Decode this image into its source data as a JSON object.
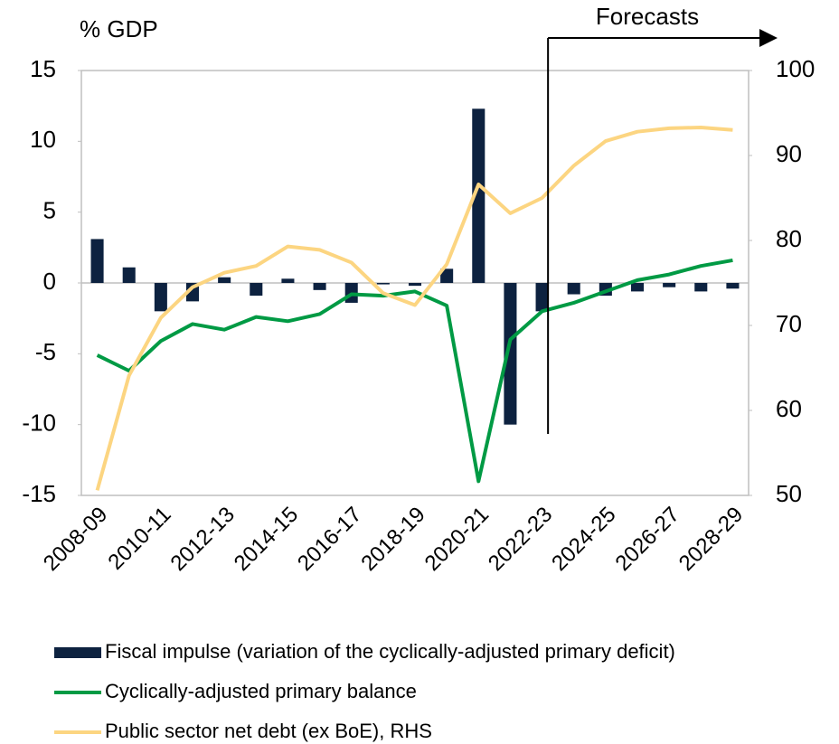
{
  "chart_data": {
    "type": "bar",
    "y_label": "% GDP",
    "annotation": "Forecasts",
    "categories": [
      "2008-09",
      null,
      "2010-11",
      null,
      "2012-13",
      null,
      "2014-15",
      null,
      "2016-17",
      null,
      "2018-19",
      null,
      "2020-21",
      null,
      "2022-23",
      null,
      "2024-25",
      null,
      "2026-27",
      null,
      "2028-29"
    ],
    "series": [
      {
        "name": "Fiscal impulse (variation of the cyclically-adjusted primary deficit)",
        "type": "bar",
        "color": "#0d2240",
        "values": [
          3.1,
          1.1,
          -2.0,
          -1.3,
          0.4,
          -0.9,
          0.3,
          -0.5,
          -1.4,
          -0.1,
          -0.2,
          1.0,
          12.3,
          -10.0,
          -2.0,
          -0.8,
          -0.9,
          -0.6,
          -0.3,
          -0.6,
          -0.4
        ]
      },
      {
        "name": "Cyclically-adjusted primary balance",
        "type": "line",
        "color": "#009a44",
        "values": [
          -5.1,
          -6.2,
          -4.1,
          -2.9,
          -3.3,
          -2.4,
          -2.7,
          -2.2,
          -0.8,
          -0.9,
          -0.6,
          -1.6,
          -14.0,
          -4.0,
          -2.0,
          -1.4,
          -0.6,
          0.2,
          0.6,
          1.2,
          1.6
        ]
      },
      {
        "name": "Public sector net debt (ex BoE), RHS",
        "type": "line",
        "axis": "y2",
        "color": "#fcd581",
        "values": [
          50.6,
          64.1,
          70.9,
          74.5,
          76.2,
          77.0,
          79.3,
          78.9,
          77.4,
          73.8,
          72.4,
          77.2,
          86.6,
          83.2,
          85.0,
          88.8,
          91.7,
          92.8,
          93.2,
          93.3,
          93.0
        ]
      }
    ],
    "ylim": [
      -15,
      15
    ],
    "yticks": [
      -15,
      -10,
      -5,
      0,
      5,
      10,
      15
    ],
    "y2lim": [
      50,
      100
    ],
    "y2ticks": [
      50,
      60,
      70,
      80,
      90,
      100
    ],
    "grid": false
  }
}
